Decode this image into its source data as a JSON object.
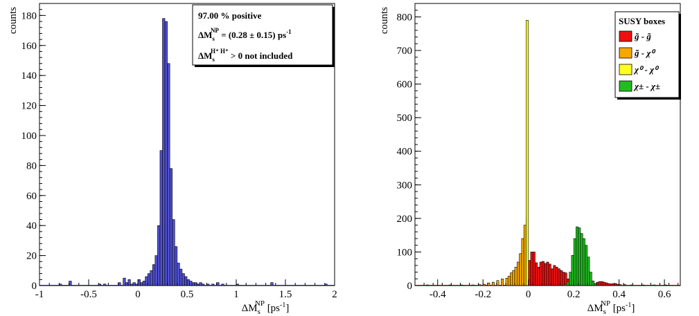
{
  "chart_data": [
    {
      "type": "bar",
      "xlabel_main": "ΔM",
      "xlabel_sub": "s",
      "xlabel_sup": "NP",
      "xlabel_unit_pre": " [ps",
      "xlabel_unit_sup": "-1",
      "xlabel_unit_post": "]",
      "ylabel": "counts",
      "xlim": [
        -1,
        2
      ],
      "ylim": [
        0,
        188
      ],
      "x_ticks": [
        "-1",
        "-0.5",
        "0",
        "0.5",
        "1",
        "1.5",
        "2"
      ],
      "x_tick_values": [
        -1,
        -0.5,
        0,
        0.5,
        1,
        1.5,
        2
      ],
      "y_ticks": [
        "0",
        "20",
        "40",
        "60",
        "80",
        "100",
        "120",
        "140",
        "160",
        "180"
      ],
      "y_tick_values": [
        0,
        20,
        40,
        60,
        80,
        100,
        120,
        140,
        160,
        180
      ],
      "bin_width": 0.025,
      "color": "#5050d0",
      "bins_x": [
        -0.8,
        -0.7,
        -0.4,
        -0.35,
        -0.2,
        -0.15,
        -0.125,
        -0.1,
        -0.075,
        -0.05,
        -0.025,
        0.0,
        0.025,
        0.05,
        0.075,
        0.1,
        0.125,
        0.15,
        0.175,
        0.2,
        0.225,
        0.25,
        0.275,
        0.3,
        0.325,
        0.35,
        0.375,
        0.4,
        0.425,
        0.45,
        0.475,
        0.5,
        0.525,
        0.55,
        0.575,
        0.6,
        0.625,
        0.65,
        0.7,
        0.75,
        0.8,
        0.85,
        1.0,
        1.35,
        1.9
      ],
      "bins_y": [
        1,
        3,
        1,
        1,
        2,
        5,
        2,
        4,
        1,
        2,
        1,
        4,
        2,
        3,
        6,
        8,
        10,
        14,
        20,
        40,
        90,
        178,
        176,
        148,
        78,
        44,
        26,
        15,
        11,
        8,
        6,
        4,
        3,
        2,
        2,
        1,
        2,
        1,
        1,
        1,
        2,
        1,
        1,
        2,
        1
      ],
      "legend": {
        "line1": "97.00 % positive",
        "line2_a": "ΔM",
        "line2_sub": "s",
        "line2_sup": "NP",
        "line2_b": " = (0.28 ± 0.15) ps",
        "line2_sup2": "-1",
        "line3_a": "ΔM",
        "line3_sub": "s",
        "line3_sup": "H⁺ H⁺",
        "line3_b": " > 0 not included"
      }
    },
    {
      "type": "bar",
      "stacked": true,
      "xlabel_main": "ΔM",
      "xlabel_sub": "s",
      "xlabel_sup": "NP",
      "xlabel_unit_pre": " [ps",
      "xlabel_unit_sup": "-1",
      "xlabel_unit_post": "]",
      "ylabel": "counts",
      "xlim": [
        -0.5,
        0.67
      ],
      "ylim": [
        0,
        840
      ],
      "x_ticks": [
        "-0.4",
        "-0.2",
        "0",
        "0.2",
        "0.4",
        "0.6"
      ],
      "x_tick_values": [
        -0.4,
        -0.2,
        0,
        0.2,
        0.4,
        0.6
      ],
      "y_ticks": [
        "0",
        "100",
        "200",
        "300",
        "400",
        "500",
        "600",
        "700",
        "800"
      ],
      "y_tick_values": [
        0,
        100,
        200,
        300,
        400,
        500,
        600,
        700,
        800
      ],
      "bin_width": 0.01,
      "legend_title": "SUSY boxes",
      "series": [
        {
          "name": "g̃ - g̃",
          "color": "#ee1111",
          "x": [
            -0.45,
            -0.35,
            -0.3,
            -0.2,
            0.0,
            0.01,
            0.02,
            0.03,
            0.04,
            0.05,
            0.06,
            0.07,
            0.08,
            0.09,
            0.1,
            0.11,
            0.12,
            0.13,
            0.14,
            0.15,
            0.16,
            0.17,
            0.18,
            0.19,
            0.2,
            0.21,
            0.22,
            0.23,
            0.24,
            0.25,
            0.26,
            0.27,
            0.28,
            0.29,
            0.3,
            0.31,
            0.32,
            0.33,
            0.34,
            0.35,
            0.36,
            0.37,
            0.38,
            0.39,
            0.4,
            0.42,
            0.45,
            0.5,
            0.55,
            0.6
          ],
          "values": [
            2,
            2,
            2,
            3,
            75,
            100,
            100,
            68,
            55,
            70,
            72,
            66,
            70,
            64,
            50,
            60,
            55,
            50,
            45,
            40,
            38,
            20,
            14,
            8,
            10,
            6,
            6,
            4,
            4,
            4,
            5,
            5,
            6,
            6,
            10,
            12,
            12,
            10,
            8,
            6,
            5,
            6,
            6,
            4,
            3,
            3,
            2,
            2,
            2,
            2
          ]
        },
        {
          "name": "g̃ - χ⁰",
          "color": "#f5a800",
          "x": [
            -0.25,
            -0.22,
            -0.2,
            -0.18,
            -0.16,
            -0.14,
            -0.12,
            -0.1,
            -0.09,
            -0.08,
            -0.07,
            -0.06,
            -0.05,
            -0.04,
            -0.03,
            -0.02,
            -0.01
          ],
          "values": [
            2,
            3,
            4,
            8,
            10,
            15,
            20,
            22,
            28,
            38,
            45,
            55,
            70,
            95,
            140,
            180,
            200
          ]
        },
        {
          "name": "χ⁰ - χ⁰",
          "color": "#ffff22",
          "x": [
            -0.01
          ],
          "values": [
            790
          ]
        },
        {
          "name": "χ± - χ±",
          "color": "#22bb22",
          "x": [
            0.16,
            0.17,
            0.18,
            0.19,
            0.2,
            0.21,
            0.22,
            0.23,
            0.24,
            0.25,
            0.26,
            0.27,
            0.28,
            0.29
          ],
          "values": [
            4,
            12,
            40,
            90,
            140,
            175,
            172,
            155,
            140,
            120,
            85,
            40,
            14,
            6
          ]
        }
      ]
    }
  ]
}
